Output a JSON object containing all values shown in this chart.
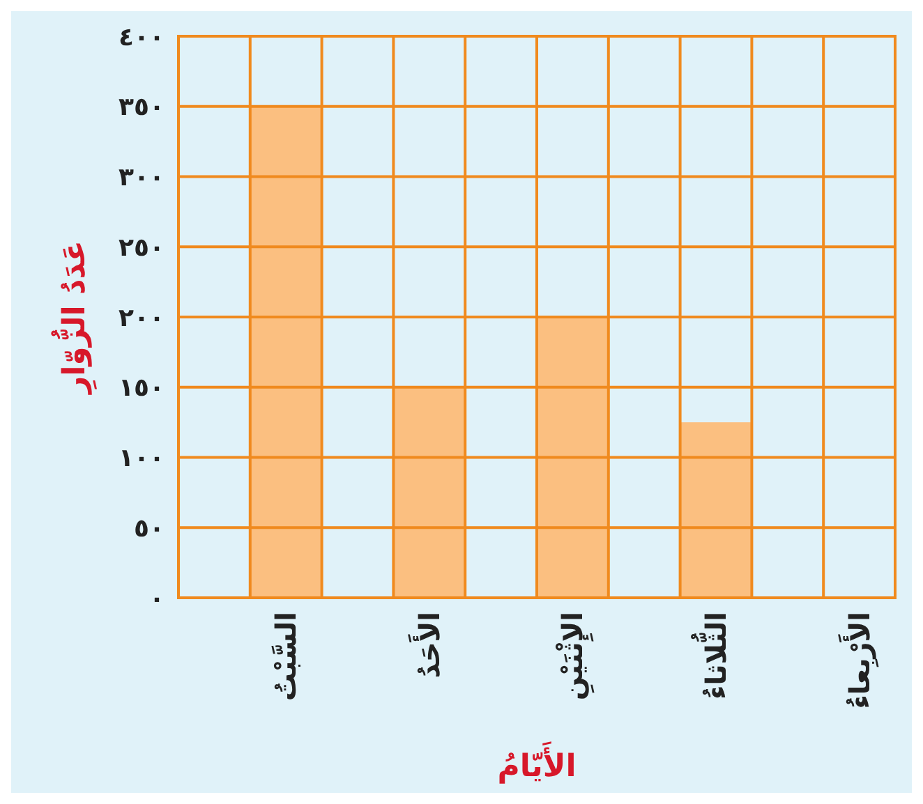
{
  "chart_data": {
    "type": "bar",
    "xlabel": "الأَيّامُ",
    "ylabel": "عَدَدُ الزُّوّارِ",
    "categories": [
      "السَّبْتُ",
      "الأَحَدُ",
      "الإِثْنَيْنِ",
      "الثُّلاثاءُ",
      "الأَرْبِعاءُ"
    ],
    "values": [
      350,
      150,
      200,
      125,
      null
    ],
    "color": "#fbbf80",
    "ylim": [
      0,
      400
    ],
    "yticks": [
      {
        "value": 0,
        "label": "٠"
      },
      {
        "value": 50,
        "label": "٥٠"
      },
      {
        "value": 100,
        "label": "١٠٠"
      },
      {
        "value": 150,
        "label": "١٥٠"
      },
      {
        "value": 200,
        "label": "٢٠٠"
      },
      {
        "value": 250,
        "label": "٢٥٠"
      },
      {
        "value": 300,
        "label": "٣٠٠"
      },
      {
        "value": 350,
        "label": "٣٥٠"
      },
      {
        "value": 400,
        "label": "٤٠٠"
      }
    ],
    "grid": true
  }
}
